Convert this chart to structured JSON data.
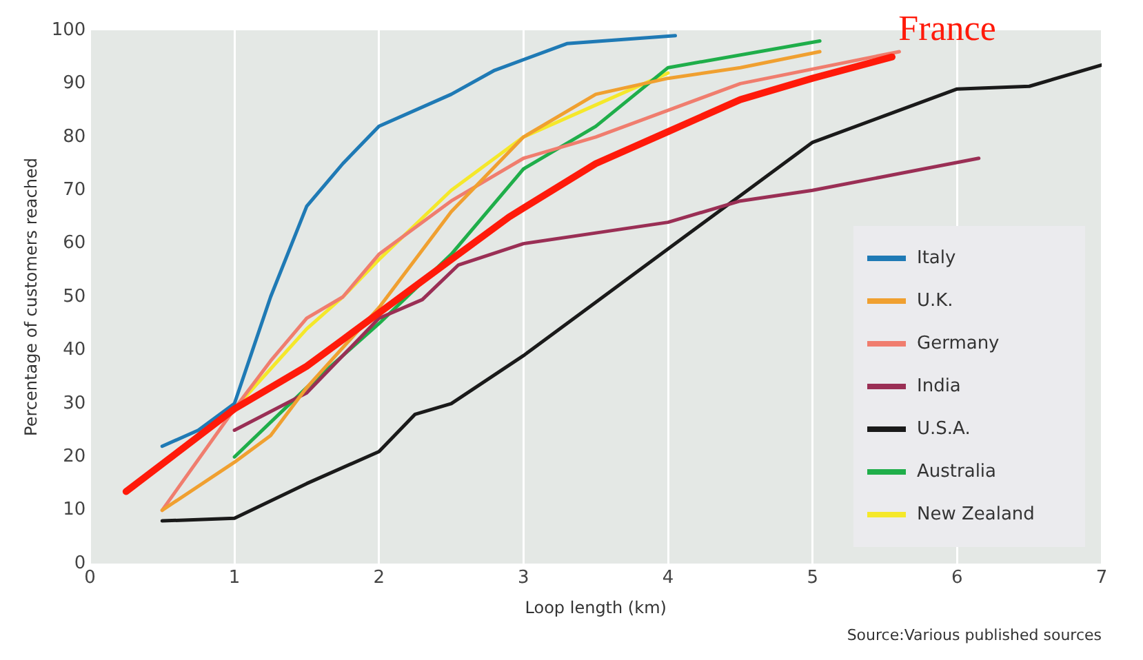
{
  "chart_data": {
    "type": "line",
    "xlabel": "Loop length (km)",
    "ylabel": "Percentage of customers reached",
    "xlim": [
      0,
      7
    ],
    "xticks": [
      0,
      1,
      2,
      3,
      4,
      5,
      6,
      7
    ],
    "ylim": [
      0,
      100
    ],
    "yticks": [
      0,
      10,
      20,
      30,
      40,
      50,
      60,
      70,
      80,
      90,
      100
    ],
    "grid": "x",
    "legend": "bottom right",
    "marker": "none",
    "line_style": "solid",
    "annotations": [
      "Source:Various published sources"
    ],
    "series": [
      {
        "name": "Italy",
        "color": "#1f7ab5",
        "x": [
          0.5,
          0.75,
          1,
          1.25,
          1.5,
          1.75,
          2,
          2.5,
          2.8,
          3.3,
          4.05
        ],
        "values": [
          22,
          25,
          30,
          50,
          67,
          75,
          82,
          88,
          92.5,
          97.5,
          99
        ]
      },
      {
        "name": "U.K.",
        "color": "#f0a030",
        "x": [
          0.5,
          1,
          1.25,
          1.5,
          2,
          2.5,
          3,
          3.5,
          4,
          4.5,
          5.05
        ],
        "values": [
          10,
          19,
          24,
          33,
          48,
          66,
          80,
          88,
          91,
          93,
          96
        ]
      },
      {
        "name": "Germany",
        "color": "#f07d6e",
        "x": [
          0.5,
          1,
          1.25,
          1.5,
          1.75,
          2,
          2.5,
          3,
          3.5,
          4,
          4.5,
          5.6
        ],
        "values": [
          10,
          29,
          38,
          46,
          50,
          58,
          68,
          76,
          80,
          85,
          90,
          96
        ]
      },
      {
        "name": "India",
        "color": "#9a2f55",
        "x": [
          1,
          1.5,
          2,
          2.3,
          2.55,
          3,
          3.5,
          4,
          4.5,
          5,
          6.15
        ],
        "values": [
          25,
          32,
          46,
          49.5,
          56,
          60,
          62,
          64,
          68,
          70,
          76
        ]
      },
      {
        "name": "U.S.A.",
        "color": "#1a1a1a",
        "x": [
          0.5,
          1,
          1.5,
          2,
          2.25,
          2.5,
          3,
          3.5,
          4,
          4.5,
          5,
          5.5,
          6,
          6.5,
          7
        ],
        "values": [
          8,
          8.5,
          15,
          21,
          28,
          30,
          39,
          49,
          59,
          69,
          79,
          84,
          89,
          89.5,
          93.5
        ]
      },
      {
        "name": "Australia",
        "color": "#1fae4a",
        "x": [
          1,
          1.5,
          2,
          2.5,
          3,
          3.5,
          4,
          5.05
        ],
        "values": [
          20,
          33,
          45,
          58,
          74,
          82,
          93,
          98
        ]
      },
      {
        "name": "New Zealand",
        "color": "#f5e82a",
        "x": [
          1,
          1.5,
          1.75,
          2,
          2.5,
          3,
          3.5,
          4
        ],
        "values": [
          29,
          44,
          50,
          57,
          70,
          80,
          86,
          92
        ]
      },
      {
        "name": "France",
        "color": "#ff1a0a",
        "x": [
          0.25,
          1,
          1.5,
          1.75,
          2,
          2.5,
          2.9,
          3.5,
          4,
          4.5,
          5,
          5.55
        ],
        "values": [
          13.5,
          29,
          37,
          42,
          47,
          57,
          65,
          75,
          81,
          87,
          91,
          95
        ]
      }
    ]
  }
}
